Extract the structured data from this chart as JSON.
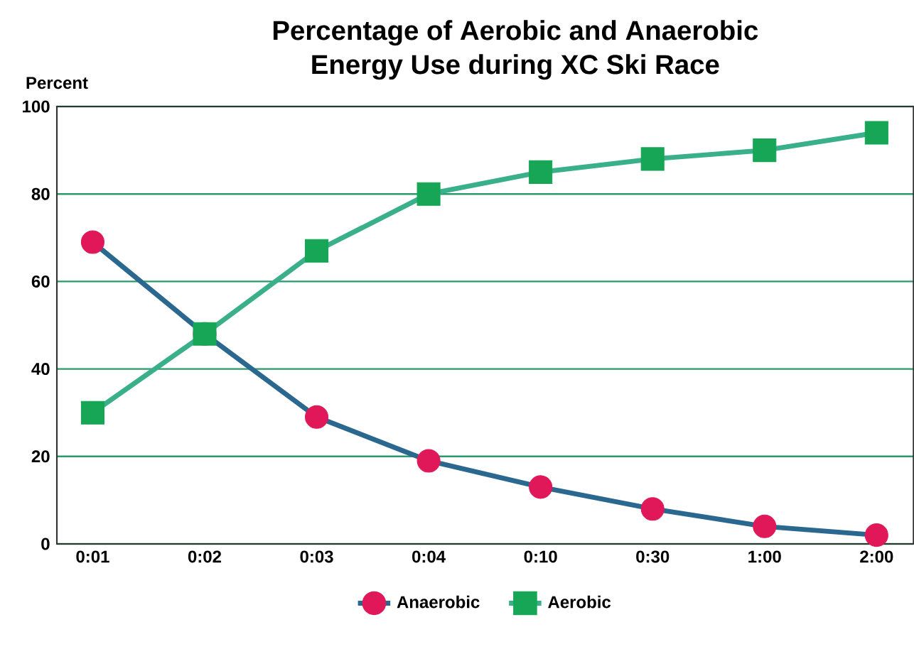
{
  "chart_data": {
    "type": "line",
    "title": "Percentage of Aerobic and Anaerobic\nEnergy Use during XC Ski Race",
    "ylabel": "Percent",
    "categories": [
      "0:01",
      "0:02",
      "0:03",
      "0:04",
      "0:10",
      "0:30",
      "1:00",
      "2:00"
    ],
    "series": [
      {
        "name": "Anaerobic",
        "color": "#2b6890",
        "marker": "circle",
        "colors": [
          "#e0185a",
          "#e0185a",
          "#e0185a",
          "#e0185a",
          "#e0185a",
          "#e0185a",
          "#e0185a",
          "#e0185a"
        ],
        "values": [
          69,
          48,
          29,
          19,
          13,
          8,
          4,
          2
        ]
      },
      {
        "name": "Aerobic",
        "color": "#3ab08a",
        "marker": "square",
        "colors": [
          "#16a656",
          "#16a656",
          "#16a656",
          "#16a656",
          "#16a656",
          "#16a656",
          "#16a656",
          "#16a656"
        ],
        "values": [
          30,
          48,
          67,
          80,
          85,
          88,
          90,
          94
        ]
      }
    ],
    "ylim": [
      0,
      100
    ],
    "yticks": [
      0,
      20,
      40,
      60,
      80,
      100
    ],
    "grid": "y",
    "legend": "bottom"
  }
}
